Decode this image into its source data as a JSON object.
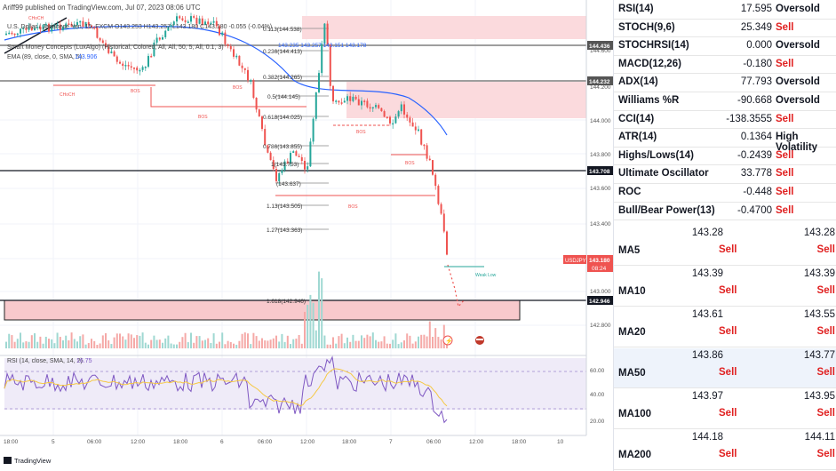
{
  "header": {
    "publisher": "Ariff99 published on TradingView.com, Jul 07, 2023 08:06 UTC",
    "symbol_line": "U.S. Dollar / Japanese Yen, 15, FXCM O143.253 H143.257 L143.180 C143.180 -0.055 (-0.04%)",
    "smc_line": "Smart Money Concepts (LuxAlgo) (Historical, Colored, All, All, 50, 5, All, 0.1, 3)",
    "ema_label": "EMA (89, close, 0, SMA, 5)",
    "ema_value": "143.906",
    "rsi_label": "RSI (14, close, SMA, 14, 2)",
    "rsi_value": "16.75",
    "footer_logo": "TradingView"
  },
  "chart_labels": {
    "fib": [
      "0.113(144.538)",
      "0.236(144.413)",
      "0.382(144.265)",
      "0.5(144.145)",
      "0.618(144.025)",
      "0.786(143.855)",
      "1(143.753)",
      "(143.637)",
      "1.13(143.505)",
      "1.27(143.363)",
      "1.618(142.946)"
    ],
    "choch": [
      "CHoCH",
      "CHoCH"
    ],
    "bos": [
      "BOS",
      "BOS",
      "BOS",
      "BOS",
      "BOS",
      "BOS"
    ],
    "ema_values_text": "143.235  143.257  143.151  143.178",
    "weak_low": "Weak Low"
  },
  "price_axis": {
    "ticks": [
      "144.600",
      "144.200",
      "144.000",
      "143.800",
      "143.600",
      "143.400",
      "143.000",
      "142.800"
    ],
    "badges": [
      "144.436",
      "144.232",
      "143.708",
      "142.946"
    ],
    "current_symbol": "USDJPY",
    "current_price": "143.180",
    "countdown": "08:24",
    "rsi_ticks": [
      "60.00",
      "40.00",
      "20.00"
    ]
  },
  "time_axis": [
    "18:00",
    "5",
    "06:00",
    "12:00",
    "18:00",
    "6",
    "06:00",
    "12:00",
    "18:00",
    "7",
    "06:00",
    "12:00",
    "18:00",
    "10"
  ],
  "indicators": [
    {
      "name": "RSI(14)",
      "value": "17.595",
      "action": "Oversold"
    },
    {
      "name": "STOCH(9,6)",
      "value": "25.349",
      "action": "Sell"
    },
    {
      "name": "STOCHRSI(14)",
      "value": "0.000",
      "action": "Oversold"
    },
    {
      "name": "MACD(12,26)",
      "value": "-0.180",
      "action": "Sell"
    },
    {
      "name": "ADX(14)",
      "value": "77.793",
      "action": "Oversold"
    },
    {
      "name": "Williams %R",
      "value": "-90.668",
      "action": "Oversold"
    },
    {
      "name": "CCI(14)",
      "value": "-138.3555",
      "action": "Sell"
    },
    {
      "name": "ATR(14)",
      "value": "0.1364",
      "action": "High Volatility"
    },
    {
      "name": "Highs/Lows(14)",
      "value": "-0.2439",
      "action": "Sell"
    },
    {
      "name": "Ultimate Oscillator",
      "value": "33.778",
      "action": "Sell"
    },
    {
      "name": "ROC",
      "value": "-0.448",
      "action": "Sell"
    },
    {
      "name": "Bull/Bear Power(13)",
      "value": "-0.4700",
      "action": "Sell"
    }
  ],
  "moving_averages": [
    {
      "name": "MA5",
      "simple": "143.28",
      "simple_action": "Sell",
      "exp": "143.28",
      "exp_action": "Sell"
    },
    {
      "name": "MA10",
      "simple": "143.39",
      "simple_action": "Sell",
      "exp": "143.39",
      "exp_action": "Sell"
    },
    {
      "name": "MA20",
      "simple": "143.61",
      "simple_action": "Sell",
      "exp": "143.55",
      "exp_action": "Sell"
    },
    {
      "name": "MA50",
      "simple": "143.86",
      "simple_action": "Sell",
      "exp": "143.77",
      "exp_action": "Sell"
    },
    {
      "name": "MA100",
      "simple": "143.97",
      "simple_action": "Sell",
      "exp": "143.95",
      "exp_action": "Sell"
    },
    {
      "name": "MA200",
      "simple": "144.18",
      "simple_action": "Sell",
      "exp": "144.11",
      "exp_action": "Sell"
    }
  ],
  "colors": {
    "sell": "#e02020",
    "up_candle": "#26a69a",
    "down_candle": "#ef5350",
    "ema": "#2962ff",
    "zone": "#f8c9cc"
  }
}
